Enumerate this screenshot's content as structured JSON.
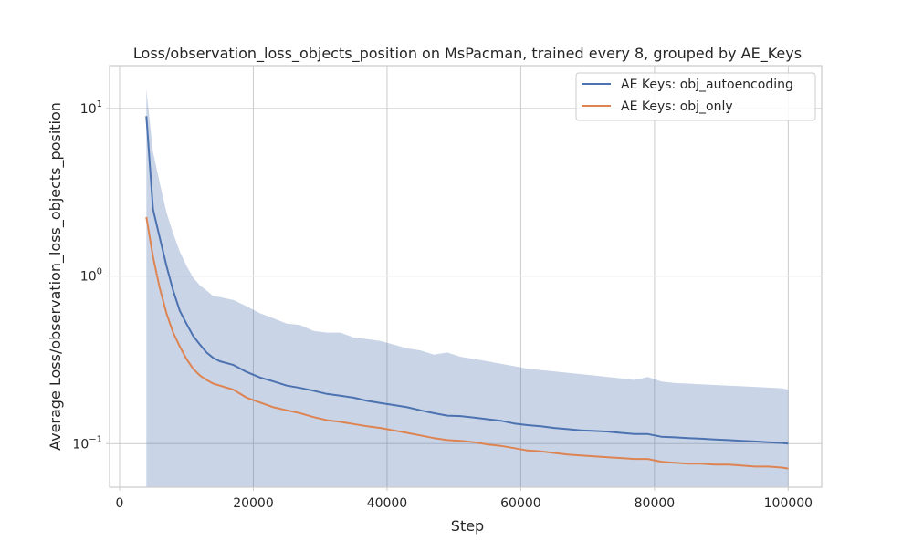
{
  "chart_data": {
    "type": "line",
    "title": "Loss/observation_loss_objects_position on MsPacman, trained every 8, grouped by AE_Keys",
    "xlabel": "Step",
    "ylabel": "Average Loss/observation_loss_objects_position",
    "xlim": [
      -1500,
      105000
    ],
    "ylim": [
      0.055,
      18
    ],
    "yscale": "log",
    "grid": true,
    "legend_position": "top-right",
    "x_ticks": [
      {
        "value": 0,
        "label": "0"
      },
      {
        "value": 20000,
        "label": "20000"
      },
      {
        "value": 40000,
        "label": "40000"
      },
      {
        "value": 60000,
        "label": "60000"
      },
      {
        "value": 80000,
        "label": "80000"
      },
      {
        "value": 100000,
        "label": "100000"
      }
    ],
    "y_ticks": [
      {
        "value": 0.1,
        "base": "10",
        "exp": "−1"
      },
      {
        "value": 1,
        "base": "10",
        "exp": "0"
      },
      {
        "value": 10,
        "base": "10",
        "exp": "1"
      }
    ],
    "x": [
      4000,
      5000,
      6000,
      7000,
      8000,
      9000,
      10000,
      11000,
      12000,
      13000,
      14000,
      15000,
      17000,
      19000,
      21000,
      23000,
      25000,
      27000,
      29000,
      31000,
      33000,
      35000,
      37000,
      39000,
      41000,
      43000,
      45000,
      47000,
      49000,
      51000,
      53000,
      55000,
      57000,
      59000,
      61000,
      63000,
      65000,
      67000,
      69000,
      71000,
      73000,
      75000,
      77000,
      79000,
      81000,
      83000,
      85000,
      87000,
      89000,
      91000,
      93000,
      95000,
      97000,
      99000,
      100000
    ],
    "band": {
      "series": "AE Keys: obj_autoencoding",
      "color": "#4c72b0",
      "opacity": 0.3,
      "upper": [
        13,
        5.5,
        3.6,
        2.4,
        1.8,
        1.4,
        1.15,
        0.98,
        0.88,
        0.82,
        0.76,
        0.75,
        0.72,
        0.66,
        0.6,
        0.56,
        0.52,
        0.51,
        0.47,
        0.46,
        0.46,
        0.43,
        0.42,
        0.41,
        0.39,
        0.37,
        0.36,
        0.34,
        0.35,
        0.33,
        0.32,
        0.31,
        0.3,
        0.29,
        0.28,
        0.275,
        0.27,
        0.265,
        0.26,
        0.255,
        0.25,
        0.245,
        0.24,
        0.25,
        0.235,
        0.23,
        0.228,
        0.226,
        0.224,
        0.222,
        0.22,
        0.218,
        0.216,
        0.214,
        0.21
      ],
      "lower": [
        0.04,
        0.04,
        0.04,
        0.04,
        0.04,
        0.04,
        0.04,
        0.04,
        0.04,
        0.04,
        0.04,
        0.04,
        0.04,
        0.04,
        0.04,
        0.04,
        0.04,
        0.04,
        0.04,
        0.04,
        0.04,
        0.04,
        0.04,
        0.04,
        0.04,
        0.04,
        0.04,
        0.04,
        0.04,
        0.04,
        0.04,
        0.04,
        0.04,
        0.04,
        0.04,
        0.04,
        0.04,
        0.04,
        0.04,
        0.04,
        0.04,
        0.04,
        0.04,
        0.04,
        0.04,
        0.04,
        0.04,
        0.04,
        0.04,
        0.04,
        0.04,
        0.04,
        0.04,
        0.04,
        0.04
      ]
    },
    "series": [
      {
        "name": "AE Keys: obj_autoencoding",
        "color": "#4c72b0",
        "values": [
          9.0,
          2.5,
          1.7,
          1.15,
          0.82,
          0.62,
          0.52,
          0.44,
          0.39,
          0.35,
          0.325,
          0.31,
          0.295,
          0.268,
          0.248,
          0.235,
          0.222,
          0.215,
          0.207,
          0.198,
          0.193,
          0.188,
          0.18,
          0.175,
          0.17,
          0.165,
          0.158,
          0.152,
          0.147,
          0.146,
          0.143,
          0.14,
          0.137,
          0.132,
          0.129,
          0.127,
          0.124,
          0.122,
          0.12,
          0.119,
          0.118,
          0.116,
          0.114,
          0.114,
          0.11,
          0.109,
          0.108,
          0.107,
          0.106,
          0.105,
          0.104,
          0.103,
          0.102,
          0.101,
          0.1
        ]
      },
      {
        "name": "AE Keys: obj_only",
        "color": "#dd8452",
        "values": [
          2.25,
          1.3,
          0.85,
          0.6,
          0.46,
          0.38,
          0.32,
          0.28,
          0.255,
          0.24,
          0.228,
          0.222,
          0.21,
          0.188,
          0.176,
          0.165,
          0.158,
          0.152,
          0.144,
          0.138,
          0.135,
          0.131,
          0.127,
          0.124,
          0.12,
          0.116,
          0.112,
          0.108,
          0.105,
          0.104,
          0.102,
          0.099,
          0.097,
          0.094,
          0.091,
          0.09,
          0.088,
          0.086,
          0.085,
          0.084,
          0.083,
          0.082,
          0.081,
          0.081,
          0.078,
          0.077,
          0.076,
          0.076,
          0.075,
          0.075,
          0.074,
          0.073,
          0.073,
          0.072,
          0.071
        ]
      }
    ]
  }
}
